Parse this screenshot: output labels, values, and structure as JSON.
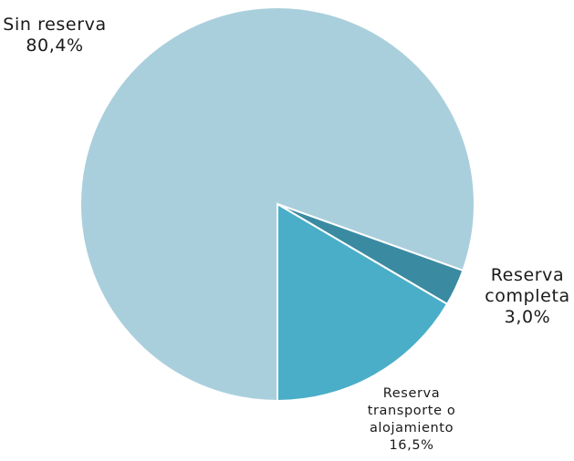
{
  "chart_data": {
    "type": "pie",
    "title": "",
    "slices": [
      {
        "name": "Sin reserva",
        "value": 80.4,
        "label_lines": [
          "Sin reserva",
          "80,4%"
        ],
        "color": "#aacfdc"
      },
      {
        "name": "Reserva completa",
        "value": 3.0,
        "label_lines": [
          "Reserva",
          "completa",
          "3,0%"
        ],
        "color": "#3a8aa2"
      },
      {
        "name": "Reserva transporte o alojamiento",
        "value": 16.5,
        "label_lines": [
          "Reserva",
          "transporte o",
          "alojamiento",
          "16,5%"
        ],
        "color": "#4aaec8"
      }
    ],
    "legend": "none",
    "border_color": "#ffffff"
  }
}
